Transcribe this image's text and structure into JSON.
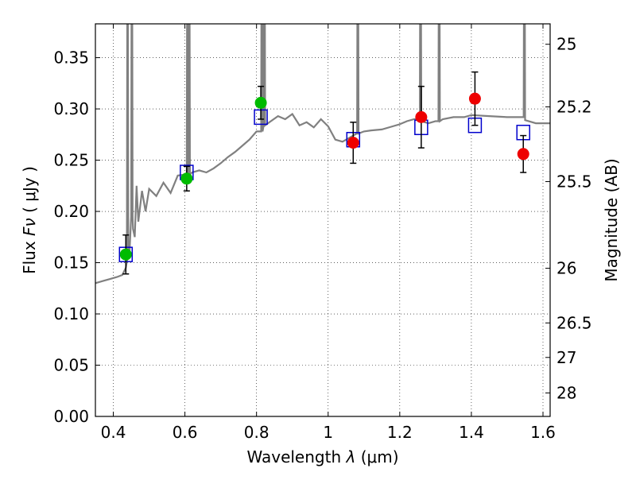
{
  "chart_data": {
    "type": "scatter",
    "xlabel": "Wavelength",
    "xlabel_symbol": "λ",
    "xlabel_unit": "(μm)",
    "ylabel": "Flux",
    "ylabel_symbol": "Fν",
    "ylabel_unit": "( μJy )",
    "ylabel_right": "Magnitude (AB)",
    "xlim": [
      0.35,
      1.62
    ],
    "ylim": [
      0.0,
      0.383
    ],
    "grid": true,
    "x_ticks": [
      {
        "value": 0.4,
        "label": "0.4"
      },
      {
        "value": 0.6,
        "label": "0.6"
      },
      {
        "value": 0.8,
        "label": "0.8"
      },
      {
        "value": 1.0,
        "label": "1"
      },
      {
        "value": 1.2,
        "label": "1.2"
      },
      {
        "value": 1.4,
        "label": "1.4"
      },
      {
        "value": 1.6,
        "label": "1.6"
      }
    ],
    "y_ticks": [
      {
        "value": 0.0,
        "label": "0.00"
      },
      {
        "value": 0.05,
        "label": "0.05"
      },
      {
        "value": 0.1,
        "label": "0.10"
      },
      {
        "value": 0.15,
        "label": "0.15"
      },
      {
        "value": 0.2,
        "label": "0.20"
      },
      {
        "value": 0.25,
        "label": "0.25"
      },
      {
        "value": 0.3,
        "label": "0.30"
      },
      {
        "value": 0.35,
        "label": "0.35"
      }
    ],
    "mag_ticks": [
      {
        "mag": 25,
        "label": "25"
      },
      {
        "mag": 25.2,
        "label": "25.2"
      },
      {
        "mag": 25.5,
        "label": "25.5"
      },
      {
        "mag": 26,
        "label": "26"
      },
      {
        "mag": 26.5,
        "label": "26.5"
      },
      {
        "mag": 27,
        "label": "27"
      },
      {
        "mag": 28,
        "label": "28"
      }
    ],
    "series": [
      {
        "kind": "spectrum",
        "color": "#808080",
        "points": [
          [
            0.35,
            0.13
          ],
          [
            0.37,
            0.132
          ],
          [
            0.39,
            0.134
          ],
          [
            0.41,
            0.136
          ],
          [
            0.425,
            0.138
          ],
          [
            0.435,
            0.145
          ],
          [
            0.44,
            0.155
          ],
          [
            0.445,
            0.158
          ],
          [
            0.45,
            0.195
          ],
          [
            0.455,
            0.183
          ],
          [
            0.46,
            0.175
          ],
          [
            0.465,
            0.225
          ],
          [
            0.47,
            0.19
          ],
          [
            0.48,
            0.22
          ],
          [
            0.49,
            0.2
          ],
          [
            0.5,
            0.222
          ],
          [
            0.52,
            0.215
          ],
          [
            0.54,
            0.228
          ],
          [
            0.56,
            0.218
          ],
          [
            0.58,
            0.235
          ],
          [
            0.6,
            0.236
          ],
          [
            0.62,
            0.238
          ],
          [
            0.64,
            0.24
          ],
          [
            0.66,
            0.238
          ],
          [
            0.68,
            0.242
          ],
          [
            0.7,
            0.247
          ],
          [
            0.72,
            0.253
          ],
          [
            0.74,
            0.258
          ],
          [
            0.76,
            0.264
          ],
          [
            0.78,
            0.27
          ],
          [
            0.8,
            0.278
          ],
          [
            0.82,
            0.284
          ],
          [
            0.84,
            0.288
          ],
          [
            0.86,
            0.293
          ],
          [
            0.88,
            0.29
          ],
          [
            0.9,
            0.295
          ],
          [
            0.92,
            0.284
          ],
          [
            0.94,
            0.287
          ],
          [
            0.96,
            0.282
          ],
          [
            0.98,
            0.29
          ],
          [
            1.0,
            0.283
          ],
          [
            1.02,
            0.27
          ],
          [
            1.04,
            0.268
          ],
          [
            1.06,
            0.272
          ],
          [
            1.08,
            0.276
          ],
          [
            1.1,
            0.278
          ],
          [
            1.12,
            0.279
          ],
          [
            1.15,
            0.28
          ],
          [
            1.18,
            0.283
          ],
          [
            1.2,
            0.285
          ],
          [
            1.22,
            0.288
          ],
          [
            1.24,
            0.29
          ],
          [
            1.26,
            0.288
          ],
          [
            1.28,
            0.286
          ],
          [
            1.3,
            0.288
          ],
          [
            1.32,
            0.29
          ],
          [
            1.35,
            0.292
          ],
          [
            1.38,
            0.292
          ],
          [
            1.4,
            0.294
          ],
          [
            1.45,
            0.293
          ],
          [
            1.5,
            0.292
          ],
          [
            1.55,
            0.289
          ],
          [
            1.58,
            0.286
          ],
          [
            1.62,
            0.286
          ]
        ]
      },
      {
        "kind": "model-photometry",
        "color": "#0000cc",
        "marker": "open-square",
        "points": [
          [
            0.435,
            0.158
          ],
          [
            0.605,
            0.238
          ],
          [
            0.812,
            0.292
          ],
          [
            1.07,
            0.27
          ],
          [
            1.26,
            0.282
          ],
          [
            1.41,
            0.284
          ],
          [
            1.545,
            0.277
          ]
        ]
      },
      {
        "kind": "observed-optical",
        "color": "#00bb00",
        "marker": "filled-circle",
        "points": [
          {
            "x": 0.435,
            "y": 0.158,
            "yerr": 0.019
          },
          {
            "x": 0.605,
            "y": 0.232,
            "yerr": 0.012
          },
          {
            "x": 0.812,
            "y": 0.306,
            "yerr": 0.016
          }
        ]
      },
      {
        "kind": "observed-nir",
        "color": "#ee0000",
        "marker": "filled-circle",
        "points": [
          {
            "x": 1.07,
            "y": 0.267,
            "yerr": 0.02
          },
          {
            "x": 1.26,
            "y": 0.292,
            "yerr": 0.03
          },
          {
            "x": 1.41,
            "y": 0.31,
            "yerr": 0.026
          },
          {
            "x": 1.545,
            "y": 0.256,
            "yerr": 0.018
          }
        ]
      }
    ],
    "emission_lines": [
      0.44,
      0.452,
      0.607,
      0.612,
      0.815,
      0.822,
      1.083,
      1.258,
      1.31,
      1.548
    ]
  }
}
